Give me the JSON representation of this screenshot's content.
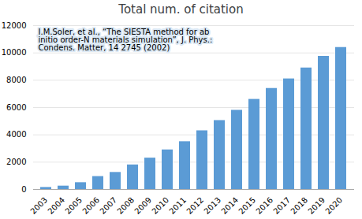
{
  "chart_data": {
    "type": "bar",
    "title": "Total num. of citation",
    "categories": [
      "2003",
      "2004",
      "2005",
      "2006",
      "2007",
      "2008",
      "2009",
      "2010",
      "2011",
      "2012",
      "2013",
      "2014",
      "2015",
      "2016",
      "2017",
      "2018",
      "2019",
      "2020"
    ],
    "values": [
      150,
      250,
      500,
      950,
      1250,
      1800,
      2300,
      2900,
      3500,
      4300,
      5050,
      5800,
      6600,
      7400,
      8100,
      8900,
      9750,
      10400
    ],
    "color": "#5B9BD5",
    "ylim": [
      0,
      12000
    ],
    "yticks": [
      0,
      2000,
      4000,
      6000,
      8000,
      10000,
      12000
    ],
    "grid": true,
    "annotations": [
      "J.M.Soler, et al., “The SIESTA method for ab",
      "initio order-N materials simulation”, J. Phys.:",
      "Condens. Matter, 14 2745 (2002)"
    ]
  }
}
